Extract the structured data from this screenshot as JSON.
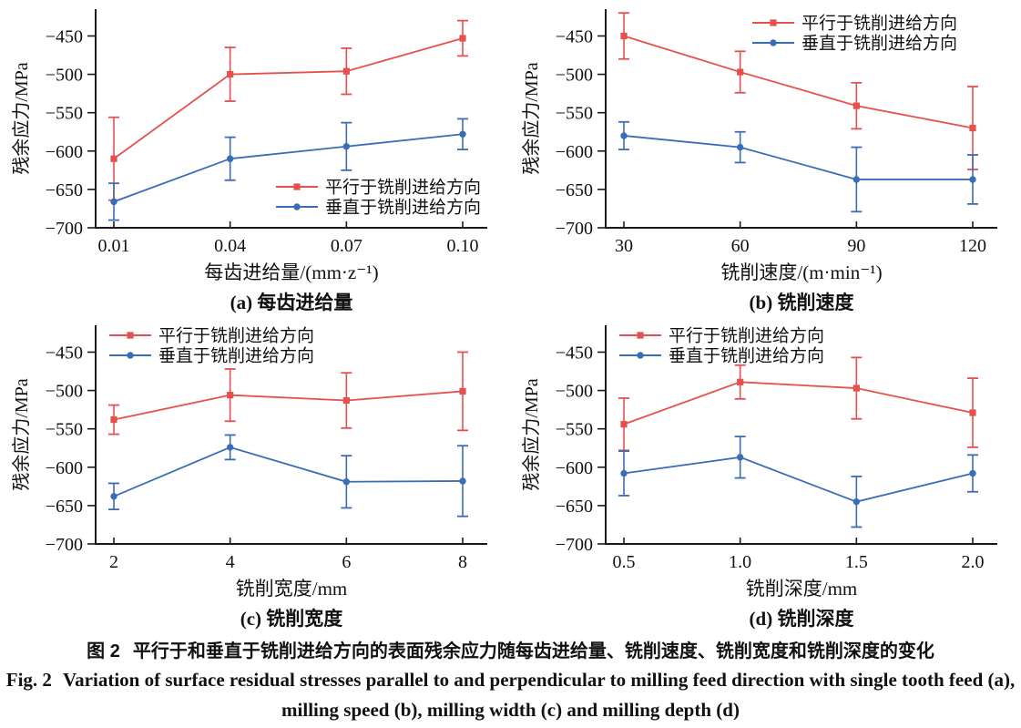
{
  "figure": {
    "caption_cn": {
      "prefix": "图 2",
      "text": "平行于和垂直于铣削进给方向的表面残余应力随每齿进给量、铣削速度、铣削宽度和铣削深度的变化"
    },
    "caption_en": {
      "prefix": "Fig. 2",
      "line1": "Variation of surface residual stresses parallel to and perpendicular to milling feed direction with single tooth feed (a),",
      "line2": "milling speed (b), milling width (c) and milling depth (d)"
    }
  },
  "colors": {
    "parallel": "#E5514E",
    "perpendicular": "#3A6DB7",
    "axis": "#1A1A1A",
    "text": "#111111"
  },
  "chart_data": [
    {
      "id": "a",
      "type": "line",
      "title": "(a) 每齿进给量",
      "xlabel": "每齿进给量/(mm·z⁻¹)",
      "ylabel": "残余应力/MPa",
      "categories": [
        "0.01",
        "0.04",
        "0.07",
        "0.10"
      ],
      "ylim": [
        -700,
        -415
      ],
      "yticks": [
        -450,
        -500,
        -550,
        -600,
        -650,
        -700
      ],
      "grid": false,
      "legend_position": "bottom-right",
      "series": [
        {
          "name": "平行于铣削进给方向",
          "key": "parallel",
          "marker": "square",
          "values": [
            -610,
            -500,
            -496,
            -453
          ],
          "errors": [
            54,
            35,
            30,
            23
          ]
        },
        {
          "name": "垂直于铣削进给方向",
          "key": "perpendicular",
          "marker": "circle",
          "values": [
            -666,
            -610,
            -594,
            -578
          ],
          "errors": [
            24,
            28,
            31,
            20
          ]
        }
      ]
    },
    {
      "id": "b",
      "type": "line",
      "title": "(b) 铣削速度",
      "xlabel": "铣削速度/(m·min⁻¹)",
      "ylabel": "残余应力/MPa",
      "categories": [
        "30",
        "60",
        "90",
        "120"
      ],
      "ylim": [
        -700,
        -415
      ],
      "yticks": [
        -450,
        -500,
        -550,
        -600,
        -650,
        -700
      ],
      "grid": false,
      "legend_position": "top-right",
      "series": [
        {
          "name": "平行于铣削进给方向",
          "key": "parallel",
          "marker": "square",
          "values": [
            -450,
            -497,
            -541,
            -570
          ],
          "errors": [
            30,
            27,
            30,
            54
          ]
        },
        {
          "name": "垂直于铣削进给方向",
          "key": "perpendicular",
          "marker": "circle",
          "values": [
            -580,
            -595,
            -637,
            -637
          ],
          "errors": [
            18,
            20,
            42,
            32
          ]
        }
      ]
    },
    {
      "id": "c",
      "type": "line",
      "title": "(c) 铣削宽度",
      "xlabel": "铣削宽度/mm",
      "ylabel": "残余应力/MPa",
      "categories": [
        "2",
        "4",
        "6",
        "8"
      ],
      "ylim": [
        -700,
        -415
      ],
      "yticks": [
        -450,
        -500,
        -550,
        -600,
        -650,
        -700
      ],
      "grid": false,
      "legend_position": "top-left",
      "series": [
        {
          "name": "平行于铣削进给方向",
          "key": "parallel",
          "marker": "square",
          "values": [
            -538,
            -506,
            -513,
            -501
          ],
          "errors": [
            19,
            34,
            36,
            51
          ]
        },
        {
          "name": "垂直于铣削进给方向",
          "key": "perpendicular",
          "marker": "circle",
          "values": [
            -638,
            -574,
            -619,
            -618
          ],
          "errors": [
            17,
            16,
            34,
            46
          ]
        }
      ]
    },
    {
      "id": "d",
      "type": "line",
      "title": "(d) 铣削深度",
      "xlabel": "铣削深度/mm",
      "ylabel": "残余应力/MPa",
      "categories": [
        "0.5",
        "1.0",
        "1.5",
        "2.0"
      ],
      "ylim": [
        -700,
        -415
      ],
      "yticks": [
        -450,
        -500,
        -550,
        -600,
        -650,
        -700
      ],
      "grid": false,
      "legend_position": "top-left",
      "series": [
        {
          "name": "平行于铣削进给方向",
          "key": "parallel",
          "marker": "square",
          "values": [
            -544,
            -489,
            -497,
            -529
          ],
          "errors": [
            34,
            22,
            40,
            45
          ]
        },
        {
          "name": "垂直于铣削进给方向",
          "key": "perpendicular",
          "marker": "circle",
          "values": [
            -608,
            -587,
            -645,
            -608
          ],
          "errors": [
            29,
            27,
            33,
            24
          ]
        }
      ]
    }
  ]
}
